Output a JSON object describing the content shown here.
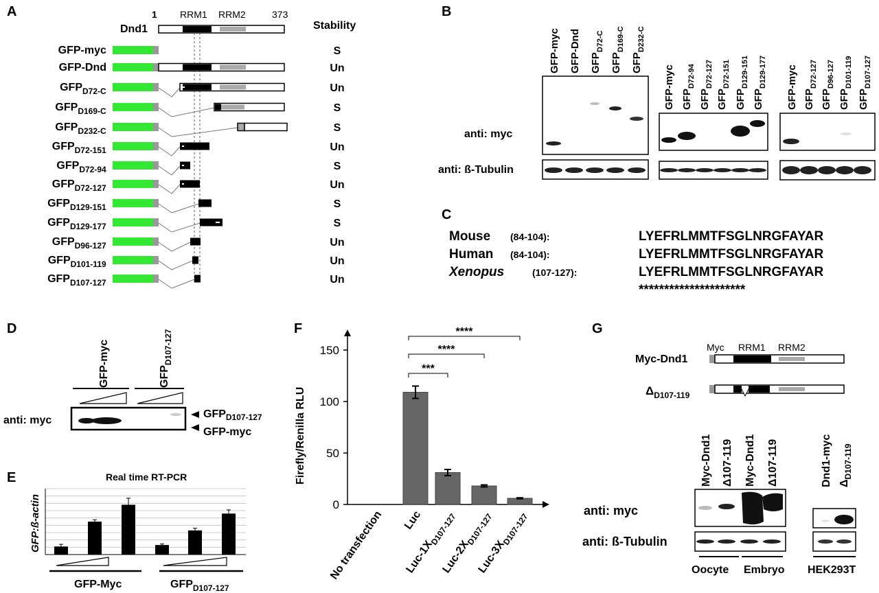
{
  "panels": {
    "A": "A",
    "B": "B",
    "C": "C",
    "D": "D",
    "E": "E",
    "F": "F",
    "G": "G"
  },
  "panelA": {
    "protein": "Dnd1",
    "start": "1",
    "end": "373",
    "rrm1": "RRM1",
    "rrm2": "RRM2",
    "stability_header": "Stability",
    "constructs": [
      {
        "main": "GFP-myc",
        "sub": "",
        "stability": "S"
      },
      {
        "main": "GFP-Dnd",
        "sub": "",
        "stability": "Un"
      },
      {
        "main": "GFP",
        "sub": "D72-C",
        "stability": "Un"
      },
      {
        "main": "GFP",
        "sub": "D169-C",
        "stability": "S"
      },
      {
        "main": "GFP",
        "sub": "D232-C",
        "stability": "S"
      },
      {
        "main": "GFP",
        "sub": "D72-151",
        "stability": "Un"
      },
      {
        "main": "GFP",
        "sub": "D72-94",
        "stability": "S"
      },
      {
        "main": "GFP",
        "sub": "D72-127",
        "stability": "Un"
      },
      {
        "main": "GFP",
        "sub": "D129-151",
        "stability": "S"
      },
      {
        "main": "GFP",
        "sub": "D129-177",
        "stability": "S"
      },
      {
        "main": "GFP",
        "sub": "D96-127",
        "stability": "Un"
      },
      {
        "main": "GFP",
        "sub": "D101-119",
        "stability": "Un"
      },
      {
        "main": "GFP",
        "sub": "D107-127",
        "stability": "Un"
      }
    ]
  },
  "panelB": {
    "blot1_lanes": [
      {
        "main": "GFP-myc",
        "sub": ""
      },
      {
        "main": "GFP-Dnd",
        "sub": ""
      },
      {
        "main": "GFP",
        "sub": "D72-C"
      },
      {
        "main": "GFP",
        "sub": "D169-C"
      },
      {
        "main": "GFP",
        "sub": "D232-C"
      }
    ],
    "blot2_lanes": [
      {
        "main": "GFP-myc",
        "sub": ""
      },
      {
        "main": "GFP",
        "sub": "D72-94"
      },
      {
        "main": "GFP",
        "sub": "D72-127"
      },
      {
        "main": "GFP",
        "sub": "D72-151"
      },
      {
        "main": "GFP",
        "sub": "D129-151"
      },
      {
        "main": "GFP",
        "sub": "D129-177"
      }
    ],
    "blot3_lanes": [
      {
        "main": "GFP-myc",
        "sub": ""
      },
      {
        "main": "GFP",
        "sub": "D72-127"
      },
      {
        "main": "GFP",
        "sub": "D96-127"
      },
      {
        "main": "GFP",
        "sub": "D101-119"
      },
      {
        "main": "GFP",
        "sub": "D107-127"
      }
    ],
    "anti_myc": "anti: myc",
    "anti_tubulin": "anti: ß-Tubulin"
  },
  "panelC": {
    "rows": [
      {
        "species": "Mouse",
        "range": "(84-104):",
        "seq": "LYEFRLMMTFSGLNRGFAYAR"
      },
      {
        "species": "Human",
        "range": "(84-104):",
        "seq": "LYEFRLMMTFSGLNRGFAYAR"
      },
      {
        "species": "Xenopus",
        "range": "(107-127):",
        "seq": "LYEFRLMMTFSGLNRGFAYAR"
      }
    ],
    "conservation": "*********************"
  },
  "panelD": {
    "lane1": "GFP-myc",
    "lane2_main": "GFP",
    "lane2_sub": "D107-127",
    "antibody": "anti: myc",
    "band_upper_main": "GFP",
    "band_upper_sub": "D107-127",
    "band_lower": "GFP-myc"
  },
  "panelE": {
    "title": "Real time RT-PCR",
    "ylabel": "GFP:ß-actin",
    "group1": "GFP-Myc",
    "group2_main": "GFP",
    "group2_sub": "D107-127"
  },
  "panelF": {
    "ylabel": "Firefly/Renilla RLU",
    "yticks": [
      "150",
      "100",
      "50",
      "0"
    ],
    "xlabels": [
      {
        "main": "No transfection",
        "sub": ""
      },
      {
        "main": "Luc",
        "sub": ""
      },
      {
        "main": "Luc-1X",
        "sub": "D107-127"
      },
      {
        "main": "Luc-2X",
        "sub": "D107-127"
      },
      {
        "main": "Luc-3X",
        "sub": "D107-127"
      }
    ],
    "sig1": "***",
    "sig2": "****",
    "sig3": "****"
  },
  "panelG": {
    "myc": "Myc",
    "rrm1": "RRM1",
    "rrm2": "RRM2",
    "construct1": "Myc-Dnd1",
    "construct2_main": "Δ",
    "construct2_sub": "D107-119",
    "lanes": [
      "Myc-Dnd1",
      "Δ107-119",
      "Myc-Dnd1",
      "Δ107-119"
    ],
    "hek_lane1": "Dnd1-myc",
    "hek_lane2_main": "Δ",
    "hek_lane2_sub": "D107-119",
    "anti_myc": "anti: myc",
    "anti_tubulin": "anti: ß-Tubulin",
    "oocyte": "Oocyte",
    "embryo": "Embryo",
    "hek": "HEK293T"
  },
  "chart_data": [
    {
      "type": "bar",
      "title": "Real time RT-PCR",
      "xlabel": "",
      "ylabel": "GFP:ß-actin",
      "categories": [
        "GFP-Myc low",
        "GFP-Myc mid",
        "GFP-Myc high",
        "GFP D107-127 low",
        "GFP D107-127 mid",
        "GFP D107-127 high"
      ],
      "values": [
        1.1,
        4.5,
        6.8,
        1.3,
        3.3,
        5.6
      ],
      "errors": [
        0.3,
        0.25,
        0.9,
        0.15,
        0.3,
        0.5
      ],
      "ylim": [
        0,
        9
      ],
      "grid": true
    },
    {
      "type": "bar",
      "title": "",
      "xlabel": "",
      "ylabel": "Firefly/Renilla RLU",
      "categories": [
        "No transfection",
        "Luc",
        "Luc-1X D107-127",
        "Luc-2X D107-127",
        "Luc-3X D107-127"
      ],
      "values": [
        0,
        109,
        31,
        18,
        6
      ],
      "errors": [
        0,
        6,
        3,
        1,
        0.5
      ],
      "ylim": [
        0,
        170
      ],
      "yticks": [
        0,
        50,
        100,
        150
      ],
      "significance": [
        {
          "from": "Luc",
          "to": "Luc-1X D107-127",
          "label": "***"
        },
        {
          "from": "Luc",
          "to": "Luc-2X D107-127",
          "label": "****"
        },
        {
          "from": "Luc",
          "to": "Luc-3X D107-127",
          "label": "****"
        }
      ]
    }
  ]
}
